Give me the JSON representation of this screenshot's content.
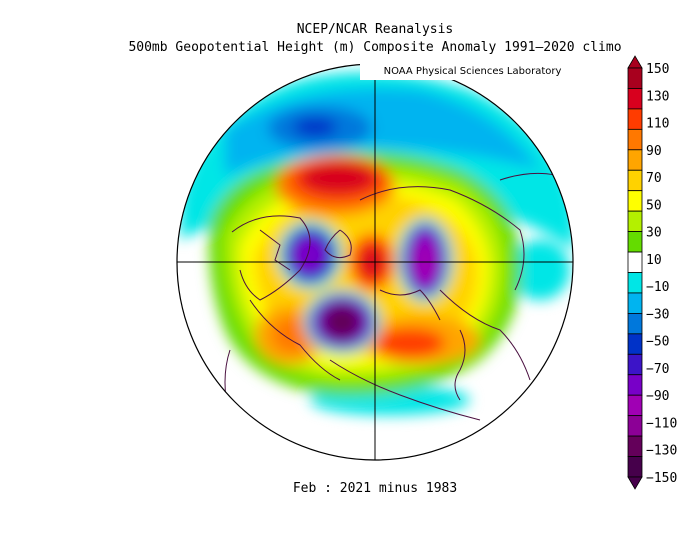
{
  "title": {
    "line1": "NCEP/NCAR Reanalysis",
    "line2": "500mb Geopotential Height (m) Composite Anomaly 1991–2020 climo"
  },
  "credit": "NOAA Physical Sciences Laboratory",
  "caption": "Feb : 2021 minus 1983",
  "colorbar": {
    "labels": [
      "150",
      "130",
      "110",
      "90",
      "70",
      "50",
      "30",
      "10",
      "−10",
      "−30",
      "−50",
      "−70",
      "−90",
      "−110",
      "−130",
      "−150"
    ],
    "colors": [
      "#a8001e",
      "#d8001e",
      "#ff3c00",
      "#ff7800",
      "#ffa500",
      "#ffd200",
      "#ffff00",
      "#b4f000",
      "#64dc00",
      "#ffffff",
      "#00e6e6",
      "#00b4f0",
      "#0078dc",
      "#0032c8",
      "#3c14c8",
      "#7800c8",
      "#a000b4",
      "#8c0096",
      "#64005a",
      "#46004b"
    ]
  }
}
